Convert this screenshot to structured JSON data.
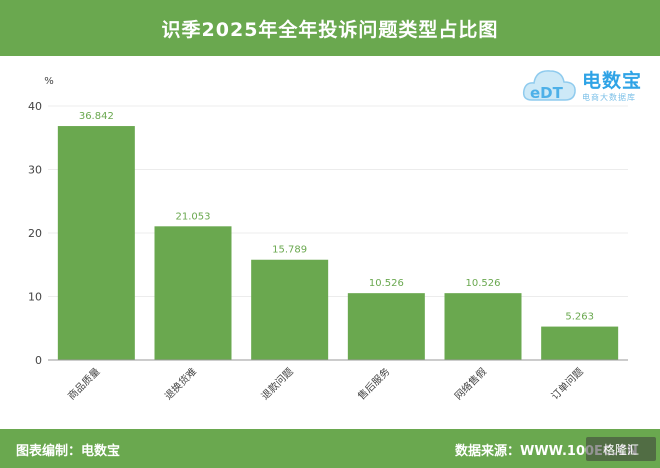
{
  "header": {
    "title": "识季2025年全年投诉问题类型占比图"
  },
  "logo": {
    "name": "电数宝",
    "subtitle": "电商大数据库",
    "mark": "eDT"
  },
  "footer": {
    "left": "图表编制：电数宝",
    "right": "数据来源：WWW.100EC.CN"
  },
  "watermark": "格隆汇",
  "colors": {
    "bar": "#6aa84f",
    "label": "#6aa84f",
    "header": "#6aa84f"
  },
  "chart_data": {
    "type": "bar",
    "ylabel": "%",
    "ylim": [
      0,
      40
    ],
    "yticks": [
      0,
      10,
      20,
      30,
      40
    ],
    "grid": true,
    "categories": [
      "商品质量",
      "退换货难",
      "退款问题",
      "售后服务",
      "网络售假",
      "订单问题"
    ],
    "values": [
      36.842,
      21.053,
      15.789,
      10.526,
      10.526,
      5.263
    ],
    "value_labels": [
      "36.842",
      "21.053",
      "15.789",
      "10.526",
      "10.526",
      "5.263"
    ]
  }
}
